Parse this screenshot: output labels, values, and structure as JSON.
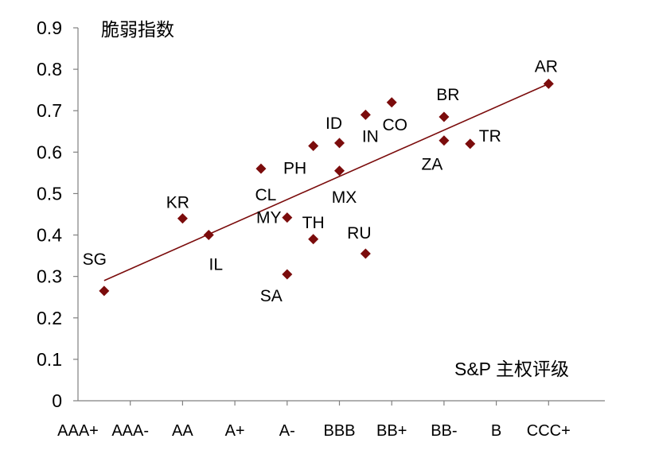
{
  "chart_data": {
    "type": "scatter",
    "title": "脆弱指数",
    "xlabel": "S&P 主权评级",
    "ylabel": "",
    "x_categories": [
      "AAA+",
      "AAA-",
      "AA",
      "A+",
      "A-",
      "BBB",
      "BB+",
      "BB-",
      "B",
      "CCC+"
    ],
    "ylim": [
      0,
      0.9
    ],
    "yticks": [
      "0",
      "0.1",
      "0.2",
      "0.3",
      "0.4",
      "0.5",
      "0.6",
      "0.7",
      "0.8",
      "0.9"
    ],
    "grid": false,
    "legend": "none",
    "marker_color": "#7B0C0C",
    "trendline_color": "#7B0C0C",
    "trendline": {
      "x": [
        0.5,
        9.0
      ],
      "y": [
        0.29,
        0.765
      ]
    },
    "points": [
      {
        "label": "SG",
        "x": 0.5,
        "y": 0.265
      },
      {
        "label": "KR",
        "x": 2.0,
        "y": 0.44
      },
      {
        "label": "IL",
        "x": 2.5,
        "y": 0.4
      },
      {
        "label": "CL",
        "x": 3.5,
        "y": 0.56
      },
      {
        "label": "MY",
        "x": 4.0,
        "y": 0.442
      },
      {
        "label": "SA",
        "x": 4.0,
        "y": 0.305
      },
      {
        "label": "PH",
        "x": 4.5,
        "y": 0.615
      },
      {
        "label": "TH",
        "x": 4.5,
        "y": 0.39
      },
      {
        "label": "ID",
        "x": 5.0,
        "y": 0.622
      },
      {
        "label": "MX",
        "x": 5.0,
        "y": 0.555
      },
      {
        "label": "IN",
        "x": 5.5,
        "y": 0.69
      },
      {
        "label": "RU",
        "x": 5.5,
        "y": 0.355
      },
      {
        "label": "CO",
        "x": 6.0,
        "y": 0.72
      },
      {
        "label": "BR",
        "x": 7.0,
        "y": 0.685
      },
      {
        "label": "ZA",
        "x": 7.0,
        "y": 0.628
      },
      {
        "label": "TR",
        "x": 7.5,
        "y": 0.62
      },
      {
        "label": "AR",
        "x": 9.0,
        "y": 0.765
      }
    ]
  }
}
